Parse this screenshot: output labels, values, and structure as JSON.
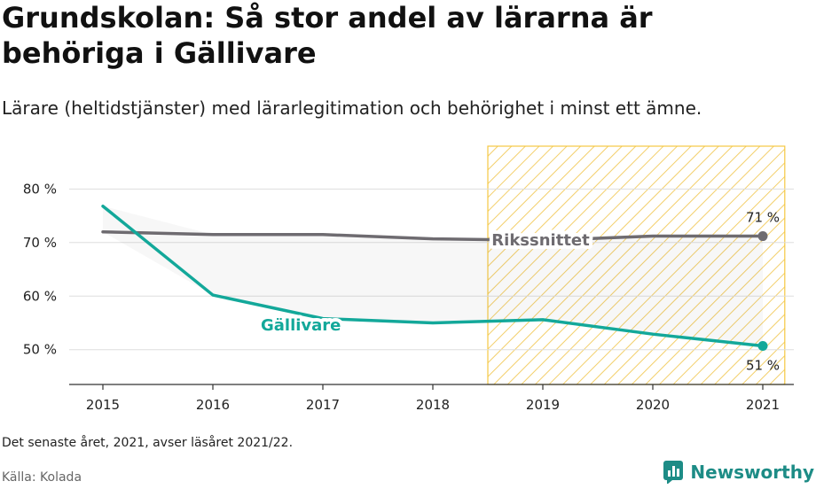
{
  "title": "Grundskolan: Så stor andel av lärarna är behöriga i Gällivare",
  "subtitle": "Lärare (heltidstjänster) med lärarlegitimation och behörighet i minst ett ämne.",
  "footnote": "Det senaste året, 2021, avser läsåret 2021/22.",
  "source": "Källa: Kolada",
  "brand": {
    "name": "Newsworthy",
    "icon": "bar-chart-logo-icon",
    "color": "#1d8c86"
  },
  "chart_data": {
    "type": "line",
    "x": [
      2015,
      2016,
      2017,
      2018,
      2019,
      2020,
      2021
    ],
    "x_tick_labels": [
      "2015",
      "2016",
      "2017",
      "2018",
      "2019",
      "2020",
      "2021"
    ],
    "ylim": [
      43.5,
      88
    ],
    "y_ticks": [
      50,
      60,
      70,
      80
    ],
    "y_tick_labels": [
      "50 %",
      "60 %",
      "70 %",
      "80 %"
    ],
    "grid": true,
    "highlight_range": [
      2018.5,
      2021.2
    ],
    "highlight_color": "#f5c842",
    "series": [
      {
        "name": "Rikssnittet",
        "color": "#6e6b70",
        "values": [
          72.0,
          71.5,
          71.5,
          70.7,
          70.4,
          71.2,
          71.2
        ],
        "end_label": "71 %"
      },
      {
        "name": "Gällivare",
        "color": "#13a89a",
        "values": [
          76.8,
          60.2,
          55.8,
          55.0,
          55.6,
          52.9,
          50.7
        ],
        "end_label": "51 %"
      }
    ]
  }
}
